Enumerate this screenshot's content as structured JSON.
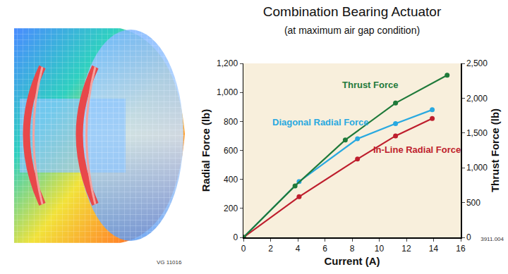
{
  "chart_data": {
    "type": "line",
    "title": "Combination Bearing Actuator",
    "subtitle": "(at maximum air gap condition)",
    "xlabel": "Current (A)",
    "ylabel": "Radial Force (lb)",
    "y2label": "Thrust Force (lb)",
    "xlim": [
      0,
      16
    ],
    "xticks": [
      0,
      2,
      4,
      6,
      8,
      10,
      12,
      14,
      16
    ],
    "ylim": [
      0,
      1200
    ],
    "yticks": [
      0,
      200,
      400,
      600,
      800,
      {
        "value": 1000,
        "label": "1,000"
      },
      {
        "value": 1200,
        "label": "1,200"
      }
    ],
    "y2lim": [
      0,
      2500
    ],
    "y2ticks": [
      0,
      500,
      {
        "value": 1000,
        "label": "1,000"
      },
      {
        "value": 1500,
        "label": "1,500"
      },
      {
        "value": 2000,
        "label": "2,000"
      },
      {
        "value": 2500,
        "label": "2,500"
      }
    ],
    "grid": false,
    "marker": "circle",
    "line_style": "solid",
    "series": [
      {
        "name": "Thrust Force",
        "color": "#1f7a3a",
        "axis": "y2",
        "x": [
          0,
          3.8,
          7.5,
          11.2,
          15
        ],
        "values": [
          0,
          740,
          1400,
          1930,
          2330
        ]
      },
      {
        "name": "Diagonal Radial Force",
        "color": "#29a9e0",
        "x": [
          0,
          4.1,
          8.4,
          11.2,
          13.9
        ],
        "values": [
          0,
          385,
          680,
          785,
          880
        ]
      },
      {
        "name": "In-Line Radial Force",
        "color": "#be1e2d",
        "x": [
          0,
          4.1,
          8.4,
          11.2,
          13.9
        ],
        "values": [
          0,
          280,
          540,
          700,
          820
        ]
      }
    ]
  },
  "figure": {
    "caption": "VG 11016"
  },
  "footnote": "3911.004"
}
